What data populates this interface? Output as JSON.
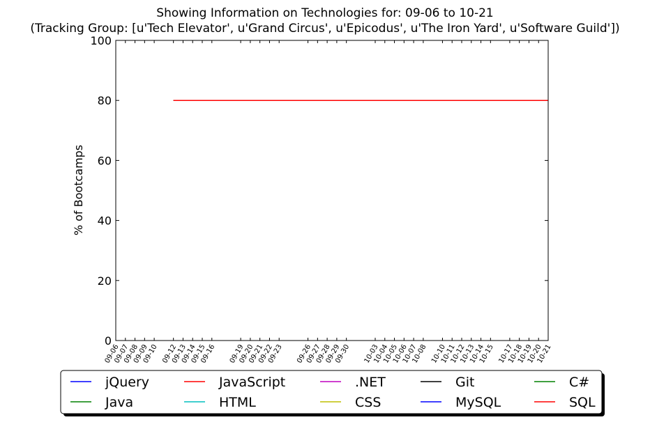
{
  "chart_data": {
    "type": "line",
    "title": "Showing Information on Technologies for: 09-06 to 10-21",
    "subtitle": "(Tracking Group: [u'Tech Elevator', u'Grand Circus', u'Epicodus', u'The Iron Yard', u'Software Guild'])",
    "xlabel": "",
    "ylabel": "% of Bootcamps",
    "ylim": [
      0,
      100
    ],
    "yticks": [
      0,
      20,
      40,
      60,
      80,
      100
    ],
    "grid": false,
    "legend_position": "bottom",
    "x": [
      "09-06",
      "09-07",
      "09-08",
      "09-09",
      "09-10",
      "09-12",
      "09-13",
      "09-14",
      "09-15",
      "09-16",
      "09-19",
      "09-20",
      "09-21",
      "09-22",
      "09-23",
      "09-26",
      "09-27",
      "09-28",
      "09-29",
      "09-30",
      "10-03",
      "10-04",
      "10-05",
      "10-06",
      "10-07",
      "10-08",
      "10-10",
      "10-11",
      "10-12",
      "10-13",
      "10-14",
      "10-15",
      "10-17",
      "10-18",
      "10-19",
      "10-20",
      "10-21"
    ],
    "x_day_index": [
      0,
      1,
      2,
      3,
      4,
      6,
      7,
      8,
      9,
      10,
      13,
      14,
      15,
      16,
      17,
      20,
      21,
      22,
      23,
      24,
      27,
      28,
      29,
      30,
      31,
      32,
      34,
      35,
      36,
      37,
      38,
      39,
      41,
      42,
      43,
      44,
      45
    ],
    "series": [
      {
        "name": "jQuery",
        "color": "#0000ff",
        "values": [
          null,
          null,
          null,
          null,
          null,
          80,
          80,
          80,
          80,
          80,
          80,
          80,
          80,
          80,
          80,
          80,
          80,
          80,
          80,
          80,
          80,
          80,
          80,
          80,
          80,
          80,
          80,
          80,
          80,
          80,
          80,
          80,
          80,
          80,
          80,
          80,
          80
        ]
      },
      {
        "name": "Java",
        "color": "#008000",
        "values": [
          null,
          null,
          null,
          null,
          null,
          80,
          80,
          80,
          80,
          80,
          80,
          80,
          80,
          80,
          80,
          80,
          80,
          80,
          80,
          80,
          80,
          80,
          80,
          80,
          80,
          80,
          80,
          80,
          80,
          80,
          80,
          80,
          80,
          80,
          80,
          80,
          80
        ]
      },
      {
        "name": "JavaScript",
        "color": "#ff0000",
        "values": [
          null,
          null,
          null,
          null,
          null,
          80,
          80,
          80,
          80,
          80,
          80,
          80,
          80,
          80,
          80,
          80,
          80,
          80,
          80,
          80,
          80,
          80,
          80,
          80,
          80,
          80,
          80,
          80,
          80,
          80,
          80,
          80,
          80,
          80,
          80,
          80,
          80
        ]
      },
      {
        "name": "HTML",
        "color": "#00bfbf",
        "values": [
          null,
          null,
          null,
          null,
          null,
          80,
          80,
          80,
          80,
          80,
          80,
          80,
          80,
          80,
          80,
          80,
          80,
          80,
          80,
          80,
          80,
          80,
          80,
          80,
          80,
          80,
          80,
          80,
          80,
          80,
          80,
          80,
          80,
          80,
          80,
          80,
          80
        ]
      },
      {
        "name": ".NET",
        "color": "#bf00bf",
        "values": [
          null,
          null,
          null,
          null,
          null,
          80,
          80,
          80,
          80,
          80,
          80,
          80,
          80,
          80,
          80,
          80,
          80,
          80,
          80,
          80,
          80,
          80,
          80,
          80,
          80,
          80,
          80,
          80,
          80,
          80,
          80,
          80,
          80,
          80,
          80,
          80,
          80
        ]
      },
      {
        "name": "CSS",
        "color": "#bfbf00",
        "values": [
          null,
          null,
          null,
          null,
          null,
          80,
          80,
          80,
          80,
          80,
          80,
          80,
          80,
          80,
          80,
          80,
          80,
          80,
          80,
          80,
          80,
          80,
          80,
          80,
          80,
          80,
          80,
          80,
          80,
          80,
          80,
          80,
          80,
          80,
          80,
          80,
          80
        ]
      },
      {
        "name": "Git",
        "color": "#000000",
        "values": [
          null,
          null,
          null,
          null,
          null,
          80,
          80,
          80,
          80,
          80,
          80,
          80,
          80,
          80,
          80,
          80,
          80,
          80,
          80,
          80,
          80,
          80,
          80,
          80,
          80,
          80,
          80,
          80,
          80,
          80,
          80,
          80,
          80,
          80,
          80,
          80,
          80
        ]
      },
      {
        "name": "MySQL",
        "color": "#0000ff",
        "values": [
          null,
          null,
          null,
          null,
          null,
          80,
          80,
          80,
          80,
          80,
          80,
          80,
          80,
          80,
          80,
          80,
          80,
          80,
          80,
          80,
          80,
          80,
          80,
          80,
          80,
          80,
          80,
          80,
          80,
          80,
          80,
          80,
          80,
          80,
          80,
          80,
          80
        ]
      },
      {
        "name": "C#",
        "color": "#008000",
        "values": [
          null,
          null,
          null,
          null,
          null,
          80,
          80,
          80,
          80,
          80,
          80,
          80,
          80,
          80,
          80,
          80,
          80,
          80,
          80,
          80,
          80,
          80,
          80,
          80,
          80,
          80,
          80,
          80,
          80,
          80,
          80,
          80,
          80,
          80,
          80,
          80,
          80
        ]
      },
      {
        "name": "SQL",
        "color": "#ff0000",
        "values": [
          null,
          null,
          null,
          null,
          null,
          80,
          80,
          80,
          80,
          80,
          80,
          80,
          80,
          80,
          80,
          80,
          80,
          80,
          80,
          80,
          80,
          80,
          80,
          80,
          80,
          80,
          80,
          80,
          80,
          80,
          80,
          80,
          80,
          80,
          80,
          80,
          80
        ]
      }
    ]
  }
}
